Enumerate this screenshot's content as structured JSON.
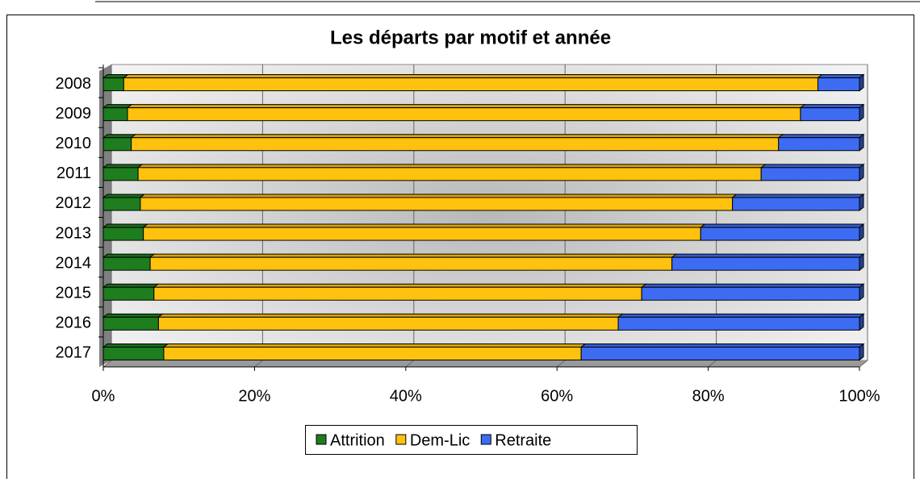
{
  "chart_data": {
    "type": "stacked_bar_horizontal_percent",
    "title": "Les départs par motif et année",
    "categories": [
      "2008",
      "2009",
      "2010",
      "2011",
      "2012",
      "2013",
      "2014",
      "2015",
      "2016",
      "2017"
    ],
    "series": [
      {
        "name": "Attrition",
        "color": "#1e7d1e",
        "values": [
          2.7,
          3.2,
          3.7,
          4.6,
          4.9,
          5.3,
          6.2,
          6.7,
          7.3,
          8.0
        ]
      },
      {
        "name": "Dem-Lic",
        "color": "#ffc20e",
        "values": [
          91.8,
          89.0,
          85.6,
          82.4,
          78.3,
          73.7,
          69.0,
          64.5,
          60.8,
          55.2
        ]
      },
      {
        "name": "Retraite",
        "color": "#3d6cf2",
        "values": [
          5.5,
          7.8,
          10.7,
          13.0,
          16.8,
          21.0,
          24.8,
          28.8,
          31.9,
          36.8
        ]
      }
    ],
    "xlim": [
      0,
      100
    ],
    "xticks": [
      {
        "value": 0,
        "label": "0%"
      },
      {
        "value": 20,
        "label": "20%"
      },
      {
        "value": 40,
        "label": "40%"
      },
      {
        "value": 60,
        "label": "60%"
      },
      {
        "value": 80,
        "label": "80%"
      },
      {
        "value": 100,
        "label": "100%"
      }
    ],
    "grid": true,
    "legend": "bottom"
  }
}
